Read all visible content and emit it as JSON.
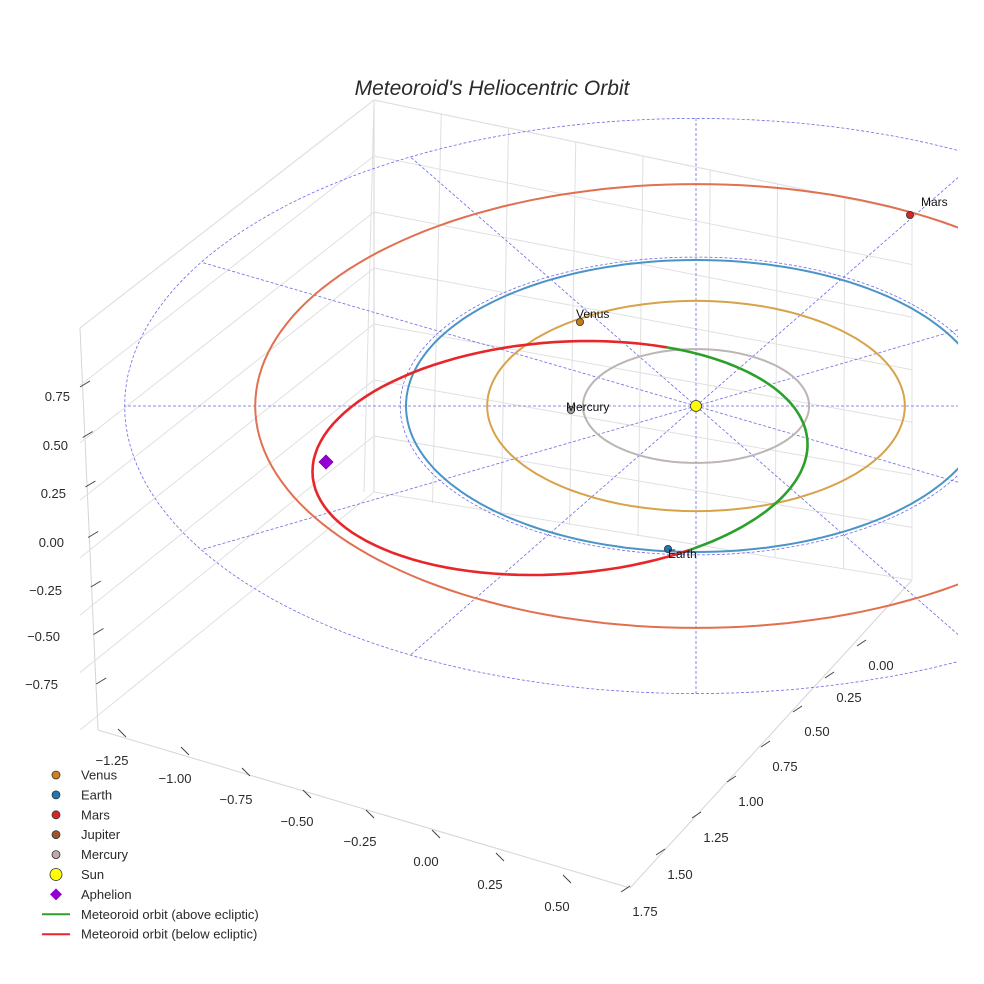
{
  "chart_data": {
    "type": "scatter3d",
    "title": "Meteoroid's Heliocentric Orbit",
    "xlabel": "",
    "ylabel": "",
    "zlabel": "",
    "x_ticks": [
      "−1.25",
      "−1.00",
      "−0.75",
      "−0.50",
      "−0.25",
      "0.00",
      "0.25",
      "0.50"
    ],
    "y_ticks": [
      "0.00",
      "0.25",
      "0.50",
      "0.75",
      "1.00",
      "1.25",
      "1.50",
      "1.75"
    ],
    "z_ticks": [
      "0.75",
      "0.50",
      "0.25",
      "0.00",
      "−0.25",
      "−0.50",
      "−0.75"
    ],
    "grid": true,
    "legend_position": "bottom-left",
    "planet_labels": [
      "Venus",
      "Earth",
      "Mars",
      "Mercury"
    ],
    "orbits": [
      {
        "name": "Mercury",
        "semi_major_axis_au": 0.39,
        "color": "#bdb4b4"
      },
      {
        "name": "Venus",
        "semi_major_axis_au": 0.72,
        "color": "#d8a24a"
      },
      {
        "name": "Earth",
        "semi_major_axis_au": 1.0,
        "color": "#4a94c8"
      },
      {
        "name": "Mars",
        "semi_major_axis_au": 1.52,
        "color": "#e07050"
      }
    ],
    "planets": [
      {
        "name": "Venus",
        "x": -0.55,
        "y": -0.45,
        "z": 0.0,
        "color": "#c97a1c"
      },
      {
        "name": "Earth",
        "x": -0.1,
        "y": 0.99,
        "z": 0.0,
        "color": "#1f77b4"
      },
      {
        "name": "Mars",
        "x": 1.1,
        "y": -1.05,
        "z": 0.0,
        "color": "#d62728"
      },
      {
        "name": "Mercury",
        "x": -0.39,
        "y": 0.02,
        "z": 0.0,
        "color": "#a89e9e"
      },
      {
        "name": "Sun",
        "x": 0.0,
        "y": 0.0,
        "z": 0.0,
        "color": "#ffff00"
      }
    ],
    "aphelion": {
      "name": "Aphelion",
      "x": -1.23,
      "y": 0.15,
      "z": 0.0,
      "color": "#9400d3"
    },
    "meteoroid_orbit": {
      "above_ecliptic_color": "#2ca02c",
      "below_ecliptic_color": "#e8262a",
      "description_segments": [
        "Meteoroid orbit (above ecliptic)",
        "Meteoroid orbit (below ecliptic)"
      ]
    },
    "ecliptic_grid_color": "#6a6ae8",
    "legend": [
      {
        "label": "Venus",
        "marker": "circle",
        "color": "#d4801c"
      },
      {
        "label": "Earth",
        "marker": "circle",
        "color": "#1f77b4"
      },
      {
        "label": "Mars",
        "marker": "circle",
        "color": "#d62728"
      },
      {
        "label": "Jupiter",
        "marker": "circle",
        "color": "#a0522d"
      },
      {
        "label": "Mercury",
        "marker": "circle",
        "color": "#c0a8a8"
      },
      {
        "label": "Sun",
        "marker": "circle",
        "color": "#ffff00"
      },
      {
        "label": "Aphelion",
        "marker": "diamond",
        "color": "#9400d3"
      },
      {
        "label": "Meteoroid orbit (above ecliptic)",
        "marker": "line",
        "color": "#2ca02c"
      },
      {
        "label": "Meteoroid orbit (below ecliptic)",
        "marker": "line",
        "color": "#e8262a"
      }
    ]
  }
}
